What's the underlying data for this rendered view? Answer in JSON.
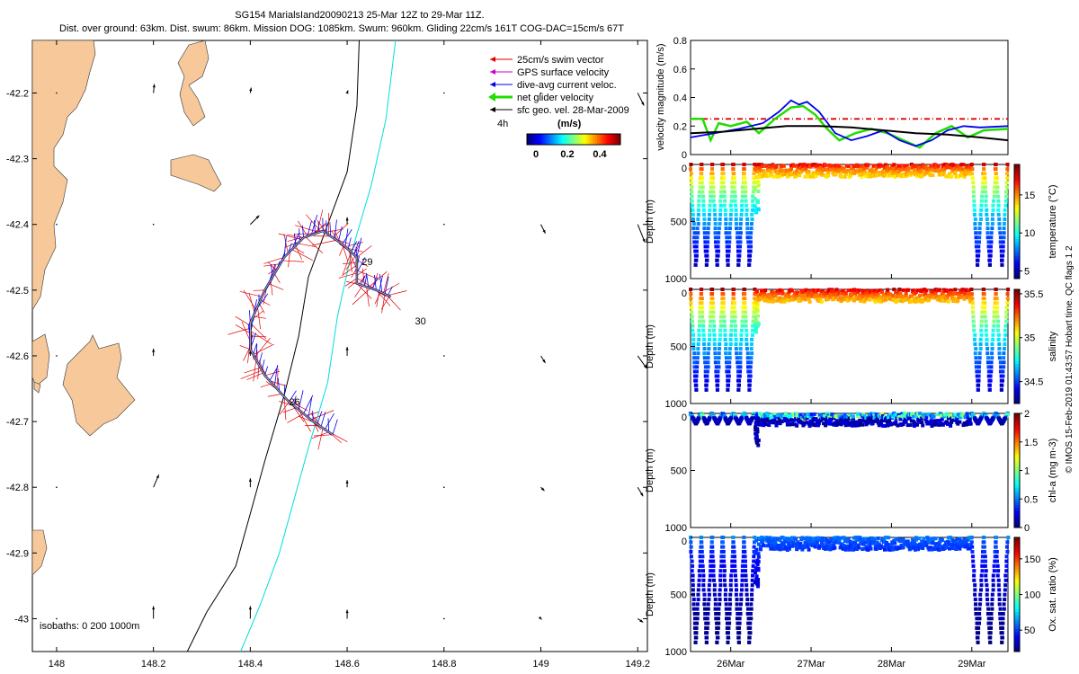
{
  "header": {
    "title": "SG154 MarialsIand20090213 25-Mar 12Z to 29-Mar 11Z.",
    "subtitle": "Dist. over ground: 63km. Dist. swum: 86km. Mission DOG: 1085km. Swum: 960km. Gliding 22cm/s 161T COG-DAC=15cm/s 67T"
  },
  "credit": "© IMOS 15-Feb-2019 01:43:57 Hobart time. QC flags 1 2",
  "colors": {
    "land": "#f7c99a",
    "swim_vector": "#e00000",
    "gps_velocity": "#cc00cc",
    "dac": "#0000ee",
    "net_velocity": "#22dd00",
    "geo_velocity": "#000000",
    "isobath_200": "#000000",
    "isobath_1000": "#00dddd"
  },
  "chart_data": [
    {
      "type": "line",
      "name": "map",
      "legend": [
        "25cm/s swim vector",
        "GPS surface velocity",
        "dive-avg current veloc.",
        "net glider velocity",
        "sfc geo. vel. 28-Mar-2009"
      ],
      "scale_label": "4h",
      "colorbar": {
        "title": "(m/s)",
        "ticks": [
          "0",
          "0.2",
          "0.4"
        ]
      },
      "isobaths_label": "isobaths: 0   200   1000m",
      "day_labels": [
        "26",
        "29",
        "30"
      ],
      "xticks": [
        "148",
        "148.2",
        "148.4",
        "148.6",
        "148.8",
        "149",
        "149.2"
      ],
      "yticks": [
        "-42.2",
        "-42.3",
        "-42.4",
        "-42.5",
        "-42.6",
        "-42.7",
        "-42.8",
        "-42.9",
        "-43"
      ],
      "xlim": [
        147.95,
        149.22
      ],
      "ylim": [
        -43.05,
        -42.12
      ],
      "track": [
        [
          148.57,
          -42.72
        ],
        [
          148.53,
          -42.7
        ],
        [
          148.48,
          -42.67
        ],
        [
          148.43,
          -42.63
        ],
        [
          148.4,
          -42.59
        ],
        [
          148.4,
          -42.55
        ],
        [
          148.43,
          -42.5
        ],
        [
          148.47,
          -42.45
        ],
        [
          148.51,
          -42.42
        ],
        [
          148.55,
          -42.41
        ],
        [
          148.59,
          -42.43
        ],
        [
          148.62,
          -42.45
        ],
        [
          148.62,
          -42.49
        ],
        [
          148.66,
          -42.5
        ],
        [
          148.69,
          -42.51
        ]
      ],
      "isobath_200": [
        [
          148.625,
          -42.12
        ],
        [
          148.62,
          -42.22
        ],
        [
          148.6,
          -42.32
        ],
        [
          148.56,
          -42.4
        ],
        [
          148.52,
          -42.48
        ],
        [
          148.5,
          -42.57
        ],
        [
          148.47,
          -42.66
        ],
        [
          148.43,
          -42.76
        ],
        [
          148.4,
          -42.84
        ],
        [
          148.37,
          -42.92
        ],
        [
          148.31,
          -42.99
        ],
        [
          148.27,
          -43.05
        ]
      ],
      "isobath_1000": [
        [
          148.7,
          -42.12
        ],
        [
          148.68,
          -42.24
        ],
        [
          148.65,
          -42.34
        ],
        [
          148.61,
          -42.44
        ],
        [
          148.58,
          -42.54
        ],
        [
          148.56,
          -42.64
        ],
        [
          148.52,
          -42.74
        ],
        [
          148.49,
          -42.82
        ],
        [
          148.46,
          -42.9
        ],
        [
          148.42,
          -42.98
        ],
        [
          148.38,
          -43.05
        ]
      ]
    },
    {
      "type": "line",
      "name": "velocity",
      "ylabel": "velocity magnitude (m/s)",
      "yticks": [
        "0",
        "0.2",
        "0.4",
        "0.6",
        "0.8"
      ],
      "ylim": [
        0,
        0.8
      ],
      "xlim": [
        25.5,
        29.45
      ],
      "series": [
        {
          "color": "#e00000",
          "dashed": true,
          "x": [
            25.5,
            29.45
          ],
          "y": [
            0.25,
            0.25
          ]
        },
        {
          "color": "#22dd00",
          "x": [
            25.5,
            25.65,
            25.75,
            25.85,
            26.0,
            26.2,
            26.35,
            26.55,
            26.75,
            26.9,
            27.05,
            27.2,
            27.35,
            27.55,
            27.75,
            27.95,
            28.15,
            28.35,
            28.55,
            28.75,
            28.95,
            29.15,
            29.45
          ],
          "y": [
            0.25,
            0.25,
            0.1,
            0.22,
            0.2,
            0.23,
            0.15,
            0.25,
            0.33,
            0.34,
            0.28,
            0.18,
            0.1,
            0.15,
            0.18,
            0.15,
            0.1,
            0.05,
            0.15,
            0.2,
            0.12,
            0.17,
            0.18
          ]
        },
        {
          "color": "#0000ee",
          "x": [
            25.5,
            25.8,
            26.1,
            26.4,
            26.6,
            26.75,
            26.85,
            26.95,
            27.1,
            27.3,
            27.5,
            27.7,
            27.9,
            28.1,
            28.3,
            28.5,
            28.7,
            28.9,
            29.1,
            29.45
          ],
          "y": [
            0.12,
            0.15,
            0.18,
            0.22,
            0.3,
            0.38,
            0.35,
            0.37,
            0.3,
            0.15,
            0.1,
            0.13,
            0.17,
            0.1,
            0.06,
            0.1,
            0.17,
            0.2,
            0.19,
            0.2
          ]
        },
        {
          "color": "#000000",
          "x": [
            25.5,
            25.9,
            26.3,
            26.7,
            27.1,
            27.5,
            27.9,
            28.3,
            28.7,
            29.1,
            29.45
          ],
          "y": [
            0.15,
            0.16,
            0.18,
            0.2,
            0.2,
            0.19,
            0.17,
            0.15,
            0.14,
            0.12,
            0.1
          ]
        }
      ]
    },
    {
      "type": "scatter",
      "name": "temperature",
      "ylabel": "Depth (m)",
      "cbar_label": "temperature (°C)",
      "yticks": [
        "0",
        "500",
        "1000"
      ],
      "cbar_ticks": [
        "5",
        "10",
        "15"
      ],
      "cbar_range": [
        4,
        19
      ],
      "depth_range": [
        0,
        1000
      ],
      "surface_value": 18,
      "deep_value": 5,
      "sections": [
        {
          "type": "dives",
          "x": [
            25.5,
            26.3
          ],
          "n": 6,
          "max_depth": 880
        },
        {
          "type": "shallow",
          "x": [
            26.3,
            26.35
          ],
          "max_depth": 430
        },
        {
          "type": "flat",
          "x": [
            26.35,
            29.0
          ],
          "max_depth": 110
        },
        {
          "type": "dives",
          "x": [
            29.0,
            29.45
          ],
          "n": 3,
          "max_depth": 880
        }
      ]
    },
    {
      "type": "scatter",
      "name": "salinity",
      "ylabel": "Depth (m)",
      "cbar_label": "salinity",
      "yticks": [
        "0",
        "500",
        "1000"
      ],
      "cbar_ticks": [
        "34.5",
        "35",
        "35.5"
      ],
      "cbar_range": [
        34.25,
        35.55
      ],
      "depth_range": [
        0,
        1000
      ],
      "surface_value": 35.5,
      "deep_value": 34.35,
      "sections": [
        {
          "type": "dives",
          "x": [
            25.5,
            26.3
          ],
          "n": 6,
          "max_depth": 880
        },
        {
          "type": "shallow",
          "x": [
            26.3,
            26.35
          ],
          "max_depth": 430
        },
        {
          "type": "flat",
          "x": [
            26.35,
            29.0
          ],
          "max_depth": 110
        },
        {
          "type": "dives",
          "x": [
            29.0,
            29.45
          ],
          "n": 3,
          "max_depth": 880
        }
      ]
    },
    {
      "type": "scatter",
      "name": "chl-a",
      "ylabel": "Depth (m)",
      "cbar_label": "chl-a (mg m-3)",
      "yticks": [
        "0",
        "500",
        "1000"
      ],
      "cbar_ticks": [
        "0",
        "0.5",
        "1",
        "1.5",
        "2"
      ],
      "cbar_range": [
        0,
        2
      ],
      "depth_range": [
        0,
        1000
      ],
      "surface_value": 0.5,
      "deep_value": 0.02,
      "sections": [
        {
          "type": "spots",
          "x": [
            25.5,
            26.3
          ],
          "n": 6,
          "max_depth": 90
        },
        {
          "type": "shallow",
          "x": [
            26.3,
            26.35
          ],
          "max_depth": 280
        },
        {
          "type": "flat",
          "x": [
            26.35,
            29.0
          ],
          "max_depth": 110
        },
        {
          "type": "spots",
          "x": [
            29.0,
            29.45
          ],
          "n": 3,
          "max_depth": 90
        }
      ]
    },
    {
      "type": "scatter",
      "name": "oxygen",
      "ylabel": "Depth (m)",
      "cbar_label": "Ox. sat. ratio (%)",
      "xticks": [
        "26Mar",
        "27Mar",
        "28Mar",
        "29Mar"
      ],
      "yticks": [
        "0",
        "500",
        "1000"
      ],
      "cbar_ticks": [
        "50",
        "100",
        "150"
      ],
      "cbar_range": [
        20,
        180
      ],
      "depth_range": [
        0,
        1000
      ],
      "surface_value": 60,
      "deep_value": 20,
      "sections": [
        {
          "type": "dives",
          "x": [
            25.5,
            26.3
          ],
          "n": 6,
          "max_depth": 920
        },
        {
          "type": "shallow",
          "x": [
            26.3,
            26.35
          ],
          "max_depth": 430
        },
        {
          "type": "flat",
          "x": [
            26.35,
            29.0
          ],
          "max_depth": 110
        },
        {
          "type": "dives",
          "x": [
            29.0,
            29.45
          ],
          "n": 3,
          "max_depth": 920
        }
      ]
    }
  ]
}
